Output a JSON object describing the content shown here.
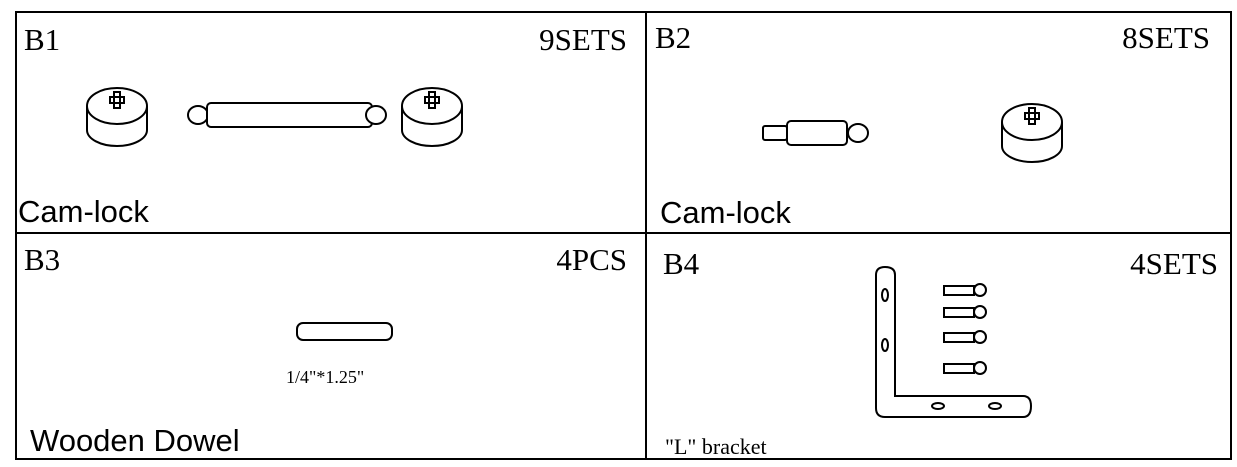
{
  "cells": [
    {
      "id": "B1",
      "quantity": "9SETS",
      "label": "Cam-lock"
    },
    {
      "id": "B2",
      "quantity": "8SETS",
      "label": "Cam-lock"
    },
    {
      "id": "B3",
      "quantity": "4PCS",
      "label": "Wooden Dowel",
      "size": "1/4\"*1.25\""
    },
    {
      "id": "B4",
      "quantity": "4SETS",
      "label": "\"L\" bracket"
    }
  ]
}
